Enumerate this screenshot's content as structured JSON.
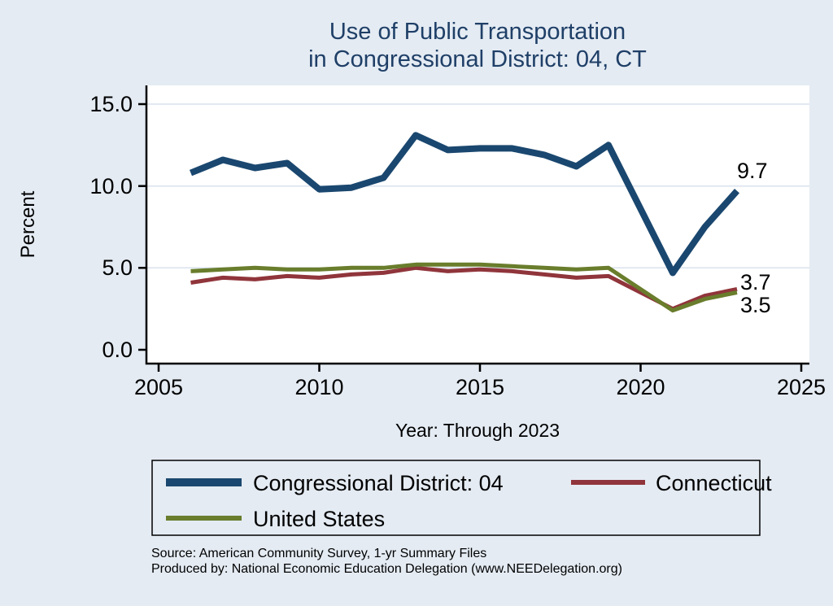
{
  "title": {
    "line1": "Use of Public Transportation",
    "line2": "in Congressional District: 04, CT"
  },
  "colors": {
    "background": "#e4ebf3",
    "title": "#1f3f67",
    "axis": "#000000",
    "gridline": "#d9e2ee",
    "plot_background": "#ffffff"
  },
  "chart_data": {
    "type": "line",
    "x": [
      2006,
      2007,
      2008,
      2009,
      2010,
      2011,
      2012,
      2013,
      2014,
      2015,
      2016,
      2017,
      2018,
      2019,
      2021,
      2022,
      2023
    ],
    "series": [
      {
        "name": "Congressional District: 04",
        "color": "#1a476f",
        "line_width": 8,
        "values": [
          10.8,
          11.6,
          11.1,
          11.4,
          9.8,
          9.9,
          10.5,
          13.1,
          12.2,
          12.3,
          12.3,
          11.9,
          11.2,
          12.5,
          4.7,
          7.5,
          9.7
        ],
        "end_label": "9.7"
      },
      {
        "name": "Connecticut",
        "color": "#90353b",
        "line_width": 5,
        "values": [
          4.1,
          4.4,
          4.3,
          4.5,
          4.4,
          4.6,
          4.7,
          5.0,
          4.8,
          4.9,
          4.8,
          4.6,
          4.4,
          4.5,
          2.5,
          3.3,
          3.7
        ],
        "end_label": "3.7"
      },
      {
        "name": "United States",
        "color": "#697d2c",
        "line_width": 5,
        "values": [
          4.8,
          4.9,
          5.0,
          4.9,
          4.9,
          5.0,
          5.0,
          5.2,
          5.2,
          5.2,
          5.1,
          5.0,
          4.9,
          5.0,
          2.4,
          3.1,
          3.5
        ],
        "end_label": "3.5"
      }
    ],
    "xlabel": "Year: Through 2023",
    "ylabel": "Percent",
    "xlim": [
      2005,
      2025
    ],
    "ylim": [
      0,
      15
    ],
    "x_tick_labels": [
      "2005",
      "2010",
      "2015",
      "2020",
      "2025"
    ],
    "y_tick_labels": [
      "0.0",
      "5.0",
      "10.0",
      "15.0"
    ],
    "grid": true,
    "legend_position": "bottom"
  },
  "footer": {
    "source": "Source: American Community Survey, 1-yr Summary Files",
    "produced_by": "Produced by: National Economic Education Delegation (www.NEEDelegation.org)"
  }
}
